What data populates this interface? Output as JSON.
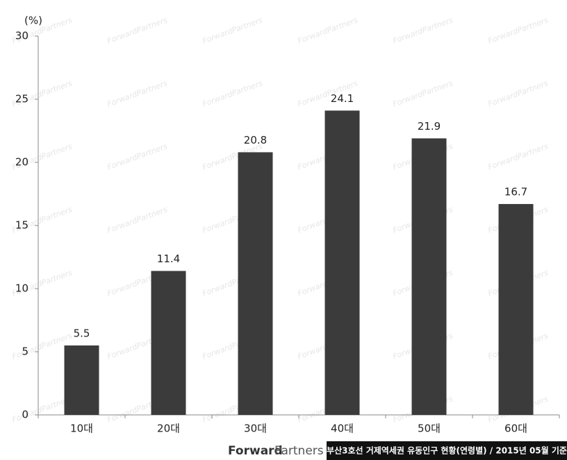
{
  "chart_data": {
    "type": "bar",
    "ylabel": "(%)",
    "categories": [
      "10대",
      "20대",
      "30대",
      "40대",
      "50대",
      "60대"
    ],
    "values": [
      5.5,
      11.4,
      20.8,
      24.1,
      21.9,
      16.7
    ],
    "color": "#3b3b3b",
    "ylim": [
      0,
      30
    ],
    "yticks": [
      0,
      5,
      10,
      15,
      20,
      25,
      30
    ],
    "grid": false,
    "watermark": "ForwardPartners"
  },
  "footer": {
    "brand_bold": "Forward",
    "brand_light": "Partners",
    "caption": "부산3호선 거제역세권 유동인구 현황(연령별) / 2015년 05월 기준"
  }
}
